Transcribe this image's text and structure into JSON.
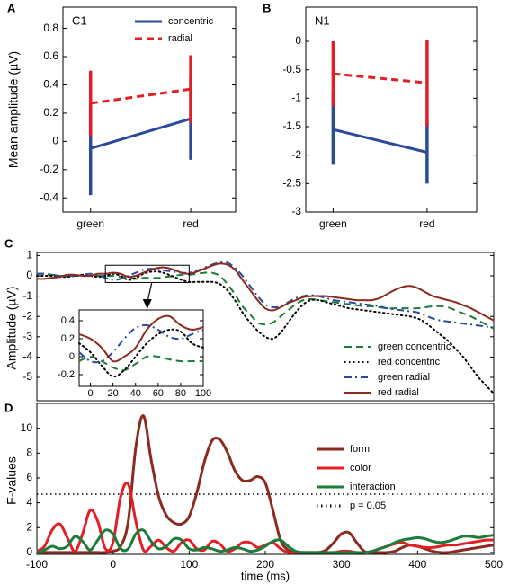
{
  "chart_data": [
    {
      "panel_label": "A",
      "type": "line",
      "annotation": "C1",
      "ylabel": "Mean amplitude (µV)",
      "categories": [
        "green",
        "red"
      ],
      "series": [
        {
          "name": "concentric",
          "color": "#2b4a9c",
          "style": "solid",
          "values": [
            -0.05,
            0.16
          ],
          "errors": [
            0.33,
            0.29
          ]
        },
        {
          "name": "radial",
          "color": "#e31f26",
          "style": "dashed",
          "values": [
            0.27,
            0.37
          ],
          "errors": [
            0.23,
            0.24
          ]
        }
      ],
      "ylim": [
        -0.5,
        0.95
      ],
      "yticks": [
        -0.4,
        -0.2,
        0,
        0.2,
        0.4,
        0.6,
        0.8
      ],
      "legend": "upper right"
    },
    {
      "panel_label": "B",
      "type": "line",
      "annotation": "N1",
      "categories": [
        "green",
        "red"
      ],
      "series": [
        {
          "color": "#2b4a9c",
          "style": "solid",
          "values": [
            -1.55,
            -1.95
          ],
          "errors": [
            0.62,
            0.55
          ]
        },
        {
          "color": "#e31f26",
          "style": "dashed",
          "values": [
            -0.57,
            -0.73
          ],
          "errors": [
            0.57,
            0.76
          ]
        }
      ],
      "ylim": [
        -3,
        0.6
      ],
      "yticks": [
        -3,
        -2.5,
        -2,
        -1.5,
        -1,
        -0.5,
        0
      ]
    },
    {
      "panel_label": "C",
      "type": "line",
      "ylabel": "Amplitude (µV)",
      "x": [
        -100,
        -90,
        -80,
        -70,
        -60,
        -50,
        -40,
        -30,
        -20,
        -10,
        0,
        10,
        20,
        30,
        40,
        50,
        60,
        70,
        80,
        90,
        100,
        110,
        120,
        130,
        140,
        150,
        160,
        170,
        180,
        190,
        200,
        210,
        220,
        230,
        240,
        250,
        260,
        270,
        280,
        290,
        300,
        310,
        320,
        330,
        340,
        350,
        360,
        370,
        380,
        390,
        400,
        410,
        420,
        430,
        440,
        450,
        460,
        470,
        480,
        490,
        500
      ],
      "xlim": [
        -100,
        500
      ],
      "ylim": [
        -6.15,
        1.15
      ],
      "yticks": [
        -5,
        -4,
        -3,
        -2,
        -1,
        0,
        1
      ],
      "legend": "lower right",
      "series": [
        {
          "name": "green concentric",
          "color": "#1b7d3a",
          "style": "dashed",
          "values": [
            0.1,
            0.1,
            0.05,
            0,
            0,
            0,
            0,
            0,
            0,
            0,
            0,
            -0.05,
            -0.1,
            -0.15,
            -0.1,
            -0.1,
            -0.1,
            -0.05,
            0,
            0.05,
            0.05,
            0.1,
            0.15,
            0.15,
            0,
            -0.4,
            -0.9,
            -1.5,
            -1.9,
            -2.3,
            -2.4,
            -2.3,
            -2.0,
            -1.7,
            -1.4,
            -1.2,
            -1.15,
            -1.2,
            -1.25,
            -1.3,
            -1.35,
            -1.4,
            -1.45,
            -1.5,
            -1.5,
            -1.55,
            -1.6,
            -1.6,
            -1.6,
            -1.6,
            -1.6,
            -1.55,
            -1.5,
            -1.5,
            -1.55,
            -1.7,
            -1.85,
            -2.0,
            -2.2,
            -2.4,
            -2.6
          ]
        },
        {
          "name": "red concentric",
          "color": "#000000",
          "style": "dotted",
          "values": [
            0,
            0,
            0,
            -0.05,
            -0.05,
            0,
            0.05,
            0,
            -0.05,
            0,
            0.1,
            0,
            -0.2,
            -0.1,
            0.1,
            0.2,
            0.2,
            0.1,
            -0.05,
            -0.2,
            -0.3,
            -0.3,
            -0.3,
            -0.3,
            -0.4,
            -0.7,
            -1.2,
            -1.8,
            -2.3,
            -2.7,
            -3.0,
            -3.1,
            -2.8,
            -2.3,
            -1.8,
            -1.4,
            -1.2,
            -1.2,
            -1.3,
            -1.4,
            -1.5,
            -1.6,
            -1.65,
            -1.7,
            -1.75,
            -1.8,
            -1.85,
            -1.9,
            -1.95,
            -2.0,
            -2.1,
            -2.3,
            -2.6,
            -2.9,
            -3.2,
            -3.6,
            -4.0,
            -4.5,
            -5.0,
            -5.4,
            -5.8
          ]
        },
        {
          "name": "green radial",
          "color": "#2b4a9c",
          "style": "dashdot",
          "values": [
            0.1,
            0.1,
            0.05,
            0,
            0,
            0,
            0.05,
            0.1,
            0.05,
            -0.1,
            -0.2,
            -0.15,
            0,
            0.15,
            0.3,
            0.35,
            0.3,
            0.25,
            0.2,
            0.15,
            0.15,
            0.25,
            0.4,
            0.55,
            0.65,
            0.65,
            0.4,
            0,
            -0.5,
            -1.0,
            -1.4,
            -1.55,
            -1.5,
            -1.3,
            -1.1,
            -1.0,
            -0.95,
            -1.0,
            -1.1,
            -1.2,
            -1.25,
            -1.3,
            -1.35,
            -1.4,
            -1.45,
            -1.5,
            -1.6,
            -1.65,
            -1.7,
            -1.75,
            -1.8,
            -1.95,
            -2.1,
            -2.2,
            -2.25,
            -2.3,
            -2.35,
            -2.4,
            -2.45,
            -2.5,
            -2.55
          ]
        },
        {
          "name": "red radial",
          "color": "#8b2a1e",
          "style": "solid",
          "values": [
            -0.15,
            -0.15,
            -0.1,
            -0.05,
            0.05,
            0.05,
            0,
            0,
            0.1,
            0.1,
            0.15,
            0.1,
            -0.05,
            0,
            0.15,
            0.3,
            0.4,
            0.4,
            0.3,
            0.15,
            0.1,
            0.2,
            0.35,
            0.5,
            0.6,
            0.55,
            0.3,
            -0.2,
            -0.7,
            -1.2,
            -1.6,
            -1.7,
            -1.55,
            -1.35,
            -1.2,
            -1.05,
            -1.0,
            -1.0,
            -1.0,
            -1.05,
            -1.1,
            -1.15,
            -1.2,
            -1.2,
            -1.2,
            -1.1,
            -0.9,
            -0.7,
            -0.55,
            -0.5,
            -0.6,
            -0.8,
            -1.0,
            -1.1,
            -1.2,
            -1.3,
            -1.45,
            -1.6,
            -1.8,
            -2.0,
            -2.2
          ]
        }
      ]
    },
    {
      "type": "line",
      "x": [
        -10,
        0,
        10,
        20,
        30,
        40,
        50,
        60,
        70,
        80,
        90,
        100
      ],
      "xlim": [
        -10,
        100
      ],
      "ylim": [
        -0.33,
        0.52
      ],
      "xticks": [
        0,
        20,
        40,
        60,
        80,
        100
      ],
      "yticks": [
        -0.2,
        0,
        0.2,
        0.4
      ],
      "series": [
        {
          "color": "#1b7d3a",
          "style": "dashed",
          "values": [
            -0.05,
            0,
            -0.05,
            -0.12,
            -0.15,
            -0.08,
            0,
            0,
            -0.03,
            -0.05,
            -0.05,
            -0.05
          ]
        },
        {
          "color": "#000000",
          "style": "dotted",
          "values": [
            0.15,
            0.05,
            -0.1,
            -0.22,
            -0.15,
            0,
            0.15,
            0.25,
            0.3,
            0.28,
            0.15,
            0.1
          ]
        },
        {
          "color": "#2b4a9c",
          "style": "dashdot",
          "values": [
            0.05,
            -0.05,
            -0.05,
            0.05,
            0.2,
            0.32,
            0.35,
            0.3,
            0.22,
            0.2,
            0.25,
            0.3
          ]
        },
        {
          "color": "#8b2a1e",
          "style": "solid",
          "values": [
            0.25,
            0.2,
            0.1,
            -0.05,
            0,
            0.1,
            0.3,
            0.42,
            0.45,
            0.35,
            0.3,
            0.33
          ]
        }
      ]
    },
    {
      "panel_label": "D",
      "type": "line",
      "ylabel": "F-values",
      "xlabel": "time (ms)",
      "x": [
        -100,
        -90,
        -80,
        -70,
        -60,
        -50,
        -40,
        -30,
        -20,
        -10,
        0,
        10,
        20,
        30,
        40,
        50,
        60,
        70,
        80,
        90,
        100,
        110,
        120,
        130,
        140,
        150,
        160,
        170,
        180,
        190,
        200,
        210,
        220,
        230,
        240,
        250,
        260,
        270,
        280,
        290,
        300,
        310,
        320,
        330,
        340,
        350,
        360,
        370,
        380,
        390,
        400,
        410,
        420,
        430,
        440,
        450,
        460,
        470,
        480,
        490,
        500
      ],
      "xlim": [
        -100,
        500
      ],
      "ylim": [
        -0.15,
        12
      ],
      "xticks": [
        -100,
        0,
        100,
        200,
        300,
        400,
        500
      ],
      "yticks": [
        0,
        2,
        4,
        6,
        8,
        10
      ],
      "legend": "upper right",
      "series": [
        {
          "name": "form",
          "color": "#8b2a1e",
          "style": "solid",
          "values": [
            0,
            0,
            0,
            0,
            0,
            0,
            0,
            0,
            0,
            0,
            0.1,
            0.5,
            2.5,
            8.5,
            11.0,
            7.5,
            4.5,
            3.0,
            2.4,
            2.3,
            2.9,
            4.8,
            7.3,
            9.0,
            9.1,
            8.1,
            6.6,
            5.8,
            5.8,
            6.1,
            5.6,
            3.4,
            1.0,
            0.2,
            0,
            0,
            0,
            0,
            0.2,
            0.8,
            1.5,
            1.6,
            0.8,
            0.1,
            0,
            0,
            0,
            0.1,
            0.4,
            0.6,
            0.5,
            0.3,
            0.1,
            0,
            0,
            0.1,
            0.2,
            0.3,
            0.4,
            0.5,
            0.6
          ]
        },
        {
          "name": "color",
          "color": "#e31f26",
          "style": "solid",
          "values": [
            0.1,
            0.5,
            1.8,
            2.3,
            1.2,
            0.1,
            1.5,
            3.4,
            2.5,
            0.3,
            0.8,
            4.5,
            5.5,
            2.5,
            0.2,
            0.5,
            1.0,
            0.4,
            0.1,
            0.8,
            1.0,
            0.3,
            0.2,
            0.9,
            0.7,
            0.1,
            0.3,
            0.8,
            0.8,
            0.4,
            0.6,
            0.8,
            0.3,
            0,
            0,
            0,
            0,
            0,
            0,
            0,
            0.1,
            0.1,
            0,
            0,
            0.1,
            0.3,
            0.5,
            0.7,
            0.8,
            0.6,
            0.5,
            0.4,
            0.4,
            0.5,
            0.6,
            0.6,
            0.7,
            0.8,
            0.9,
            1.0,
            1.0
          ]
        },
        {
          "name": "interaction",
          "color": "#1b7d3a",
          "style": "solid",
          "values": [
            0,
            0.2,
            0.5,
            0.3,
            0.5,
            1.3,
            0.9,
            0.2,
            1.0,
            1.8,
            1.5,
            0.3,
            0.3,
            1.5,
            1.8,
            0.9,
            0.3,
            0.5,
            1.1,
            1.0,
            0.3,
            0.2,
            0.4,
            0.3,
            0.1,
            0.2,
            0.4,
            0.3,
            0.1,
            0.2,
            0.5,
            0.9,
            1.0,
            0.5,
            0.1,
            0,
            0,
            0,
            0,
            0,
            0,
            0,
            0,
            0,
            0.1,
            0.3,
            0.5,
            0.8,
            1.0,
            1.1,
            1.2,
            1.1,
            0.9,
            0.8,
            0.9,
            1.1,
            1.3,
            1.3,
            1.2,
            1.3,
            1.4
          ]
        }
      ],
      "threshold": {
        "name": "p = 0.05",
        "value": 4.7,
        "color": "#000000",
        "style": "dotted"
      }
    }
  ]
}
